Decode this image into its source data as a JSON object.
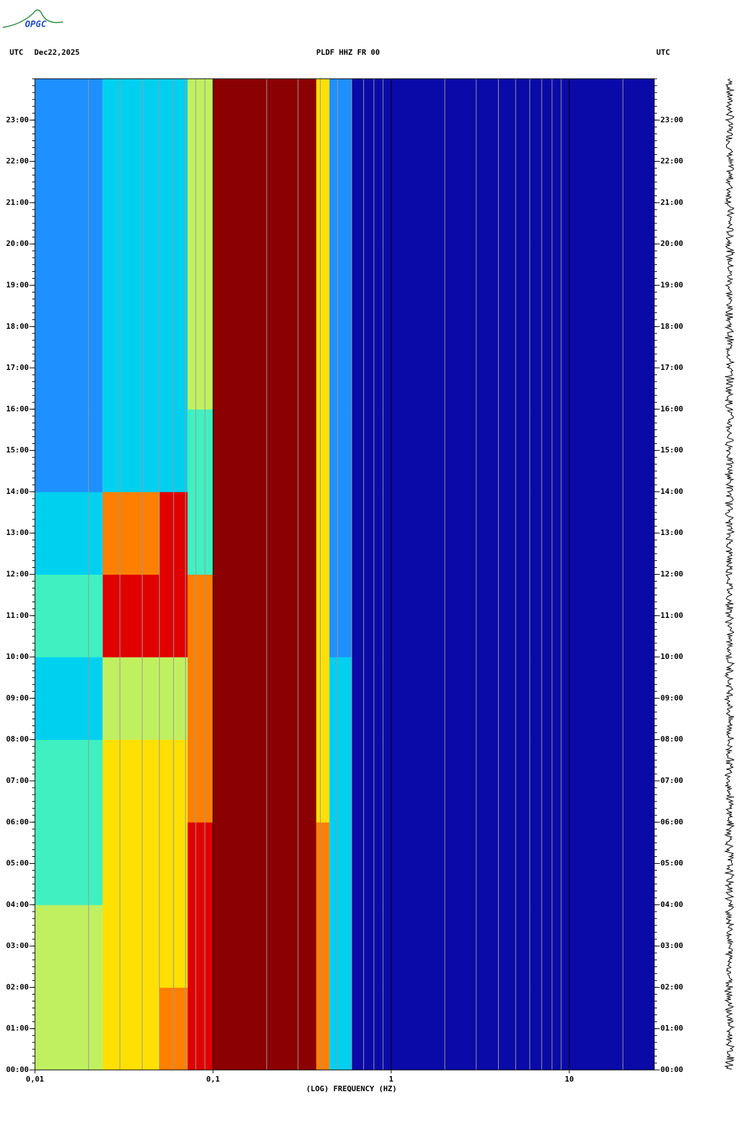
{
  "logo": "OPGC",
  "chart_data": {
    "type": "heatmap",
    "title": "PLDF HHZ FR 00",
    "left_label": "UTC",
    "date": "Dec22,2025",
    "right_label": "UTC",
    "x_label": "(LOG) FREQUENCY (HZ)",
    "log_x": true,
    "xlim": [
      0.01,
      30
    ],
    "xticks": [
      {
        "value": 0.01,
        "label": "0,01"
      },
      {
        "value": 0.1,
        "label": "0,1"
      },
      1,
      10
    ],
    "ylim": [
      0,
      24
    ],
    "yticks": [
      {
        "value": 0,
        "label": "00:00"
      },
      {
        "value": 1,
        "label": "01:00"
      },
      {
        "value": 2,
        "label": "02:00"
      },
      {
        "value": 3,
        "label": "03:00"
      },
      {
        "value": 4,
        "label": "04:00"
      },
      {
        "value": 5,
        "label": "05:00"
      },
      {
        "value": 6,
        "label": "06:00"
      },
      {
        "value": 7,
        "label": "07:00"
      },
      {
        "value": 8,
        "label": "08:00"
      },
      {
        "value": 9,
        "label": "09:00"
      },
      {
        "value": 10,
        "label": "10:00"
      },
      {
        "value": 11,
        "label": "11:00"
      },
      {
        "value": 12,
        "label": "12:00"
      },
      {
        "value": 13,
        "label": "13:00"
      },
      {
        "value": 14,
        "label": "14:00"
      },
      {
        "value": 15,
        "label": "15:00"
      },
      {
        "value": 16,
        "label": "16:00"
      },
      {
        "value": 17,
        "label": "17:00"
      },
      {
        "value": 18,
        "label": "18:00"
      },
      {
        "value": 19,
        "label": "19:00"
      },
      {
        "value": 20,
        "label": "20:00"
      },
      {
        "value": 21,
        "label": "21:00"
      },
      {
        "value": 22,
        "label": "22:00"
      },
      {
        "value": 23,
        "label": "23:00"
      }
    ],
    "x_edges": [
      0.01,
      0.024,
      0.05,
      0.072,
      0.1,
      0.38,
      0.45,
      0.6,
      30
    ],
    "colormap": [
      "#0a0aa8",
      "#1030d0",
      "#1e90ff",
      "#00d0f0",
      "#40f0c0",
      "#c0f060",
      "#ffe000",
      "#ff8000",
      "#e00000",
      "#8b0000"
    ],
    "z": [
      [
        5,
        6,
        7,
        8,
        9,
        7,
        3,
        0
      ],
      [
        5,
        6,
        6,
        8,
        9,
        7,
        3,
        0
      ],
      [
        4,
        6,
        6,
        8,
        9,
        7,
        3,
        0
      ],
      [
        4,
        6,
        6,
        7,
        9,
        6,
        3,
        0
      ],
      [
        3,
        5,
        5,
        7,
        9,
        6,
        3,
        0
      ],
      [
        4,
        8,
        8,
        7,
        9,
        6,
        2,
        0
      ],
      [
        3,
        7,
        8,
        4,
        9,
        6,
        2,
        0
      ],
      [
        2,
        3,
        3,
        4,
        9,
        6,
        2,
        0
      ],
      [
        2,
        3,
        3,
        5,
        9,
        6,
        2,
        0
      ],
      [
        2,
        3,
        3,
        5,
        9,
        6,
        2,
        0
      ],
      [
        2,
        3,
        3,
        5,
        9,
        6,
        2,
        0
      ],
      [
        2,
        3,
        3,
        5,
        9,
        6,
        2,
        0
      ]
    ]
  }
}
